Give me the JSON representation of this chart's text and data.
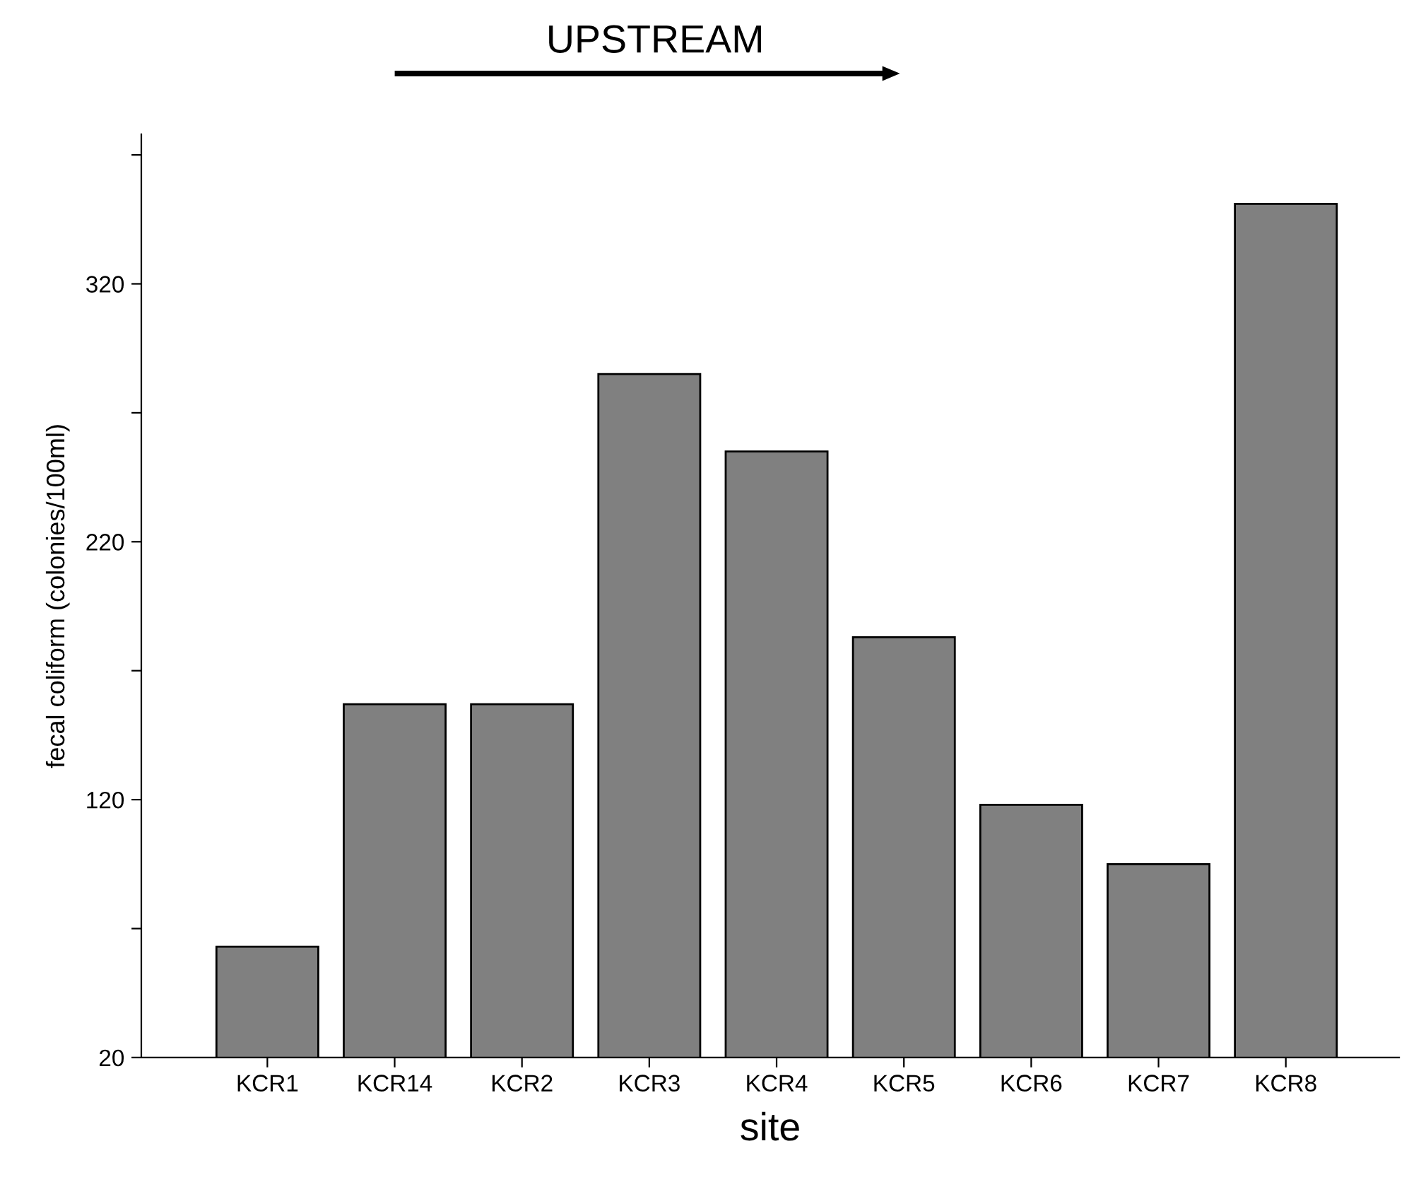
{
  "chart_data": {
    "type": "bar",
    "categories": [
      "KCR1",
      "KCR14",
      "KCR2",
      "KCR3",
      "KCR4",
      "KCR5",
      "KCR6",
      "KCR7",
      "KCR8"
    ],
    "values": [
      63,
      157,
      157,
      285,
      255,
      183,
      118,
      95,
      351
    ],
    "color": "#808080",
    "xlabel": "site",
    "ylabel": "fecal coliform (colonies/100ml)",
    "annotations": [
      "UPSTREAM"
    ],
    "ylim": [
      20,
      378
    ],
    "yticks": [
      20,
      {
        "value": 70,
        "label": null
      },
      120,
      {
        "value": 170,
        "label": null
      },
      220,
      {
        "value": 270,
        "label": null
      },
      320,
      {
        "value": 370,
        "label": null
      }
    ],
    "grid": false,
    "legend": false
  }
}
